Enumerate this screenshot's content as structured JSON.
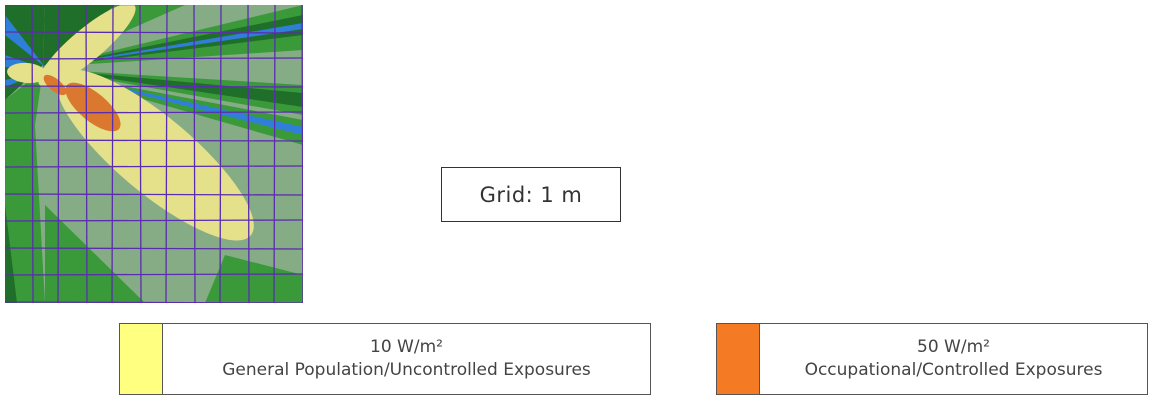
{
  "grid_label": "Grid: 1 m",
  "legend": [
    {
      "value": "10 W/m²",
      "label": "General Population/Uncontrolled Exposures",
      "color": "#ffff80"
    },
    {
      "value": "50 W/m²",
      "label": "Occupational/Controlled Exposures",
      "color": "#f47a24"
    }
  ],
  "colors": {
    "background_field": "#86ac86",
    "light_green": "#3a9a3a",
    "dark_green": "#1f6e2a",
    "blue": "#2f7fd8",
    "grid_line": "#5a2dae"
  }
}
